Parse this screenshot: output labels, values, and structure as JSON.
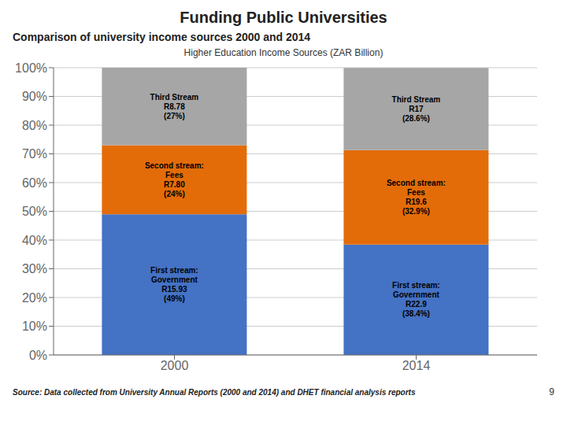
{
  "chart_data": {
    "type": "bar",
    "title": "Funding Public Universities",
    "subtitle": "Comparison of university income sources 2000 and 2014",
    "annotations": [
      "Higher Education Income Sources (ZAR Billion)",
      "Source: Data collected from University Annual Reports (2000 and 2014) and DHET financial analysis reports",
      "9"
    ],
    "categories": [
      "2000",
      "2014"
    ],
    "stacked": true,
    "data_labels": true,
    "grid": true,
    "series": [
      {
        "color": "#4472C4",
        "values": [
          49,
          38.4
        ],
        "value_labels": [
          "First stream:\nGovernment\nR15.93\n(49%)",
          "First stream:\nGovernment\nR22.9\n(38.4%)"
        ]
      },
      {
        "color": "#E36C09",
        "values": [
          24,
          32.9
        ],
        "value_labels": [
          "Second stream:\nFees\nR7.80\n(24%)",
          "Second stream:\nFees\nR19.6\n(32.9%)"
        ]
      },
      {
        "color": "#A6A6A6",
        "values": [
          27,
          28.6
        ],
        "value_labels": [
          "Third Stream\nR8.78\n(27%)",
          "Third Stream\nR17\n(28.6%)"
        ]
      }
    ],
    "ylim": [
      0,
      100
    ],
    "yticks": [
      {
        "value": 0,
        "label": "0%"
      },
      {
        "value": 10,
        "label": "10%"
      },
      {
        "value": 20,
        "label": "20%"
      },
      {
        "value": 30,
        "label": "30%"
      },
      {
        "value": 40,
        "label": "40%"
      },
      {
        "value": 50,
        "label": "50%"
      },
      {
        "value": 60,
        "label": "60%"
      },
      {
        "value": 70,
        "label": "70%"
      },
      {
        "value": 80,
        "label": "80%"
      },
      {
        "value": 90,
        "label": "90%"
      },
      {
        "value": 100,
        "label": "100%"
      }
    ]
  }
}
